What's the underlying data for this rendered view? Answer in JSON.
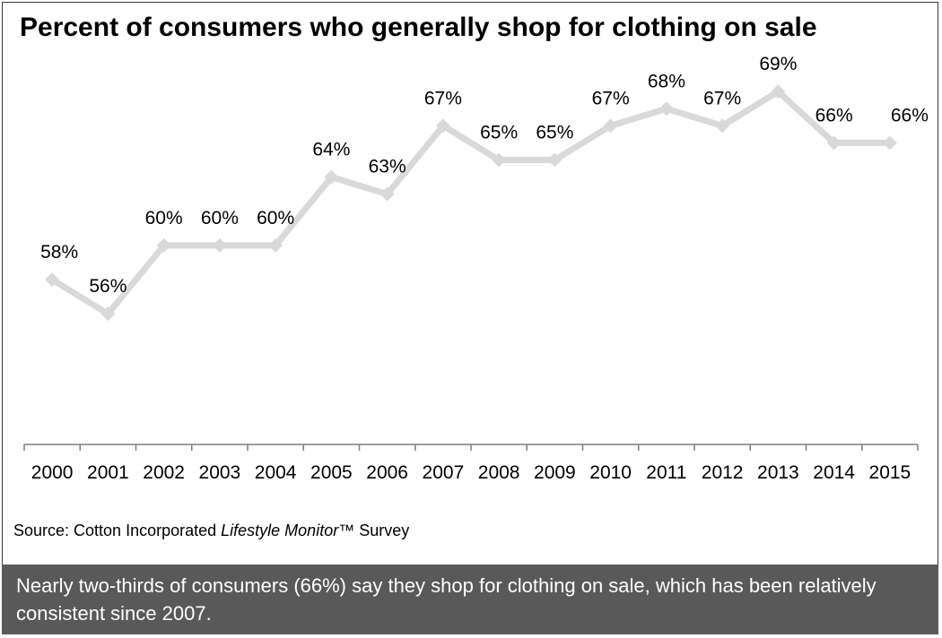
{
  "source": {
    "prefix": "Source: Cotton Incorporated ",
    "italic": "Lifestyle Monitor",
    "suffix": "™ Survey"
  },
  "footer": {
    "text": "Nearly two-thirds of consumers (66%) say they shop for clothing on sale, which has been relatively consistent since 2007."
  },
  "chart_data": {
    "type": "line",
    "title": "Percent of consumers who generally shop for clothing on sale",
    "xlabel": "",
    "ylabel": "",
    "categories": [
      "2000",
      "2001",
      "2002",
      "2003",
      "2004",
      "2005",
      "2006",
      "2007",
      "2008",
      "2009",
      "2010",
      "2011",
      "2012",
      "2013",
      "2014",
      "2015"
    ],
    "series": [
      {
        "values": [
          58,
          56,
          60,
          60,
          60,
          64,
          63,
          67,
          65,
          65,
          67,
          68,
          67,
          69,
          66,
          66
        ],
        "labels": [
          "58%",
          "56%",
          "60%",
          "60%",
          "60%",
          "64%",
          "63%",
          "67%",
          "65%",
          "65%",
          "67%",
          "68%",
          "67%",
          "69%",
          "66%",
          "66%"
        ]
      }
    ],
    "ylim": [
      45,
      72
    ],
    "grid": false,
    "legend": "none",
    "line_color": "#d9d9d9",
    "axis_color": "#7f7f7f"
  }
}
